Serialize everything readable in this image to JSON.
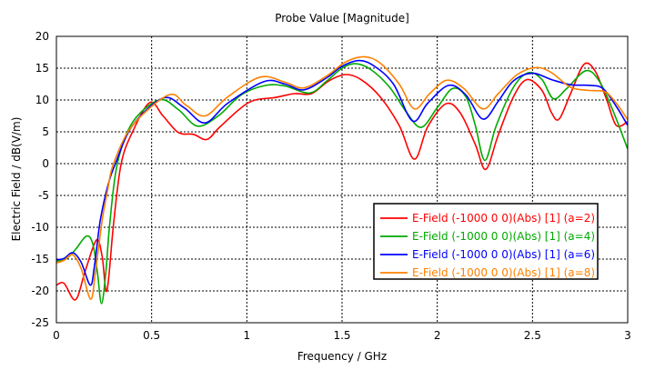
{
  "chart_data": {
    "type": "line",
    "title": "Probe Value [Magnitude]",
    "xlabel": "Frequency / GHz",
    "ylabel": "Electric Field / dB(V/m)",
    "xlim": [
      0,
      3
    ],
    "ylim": [
      -25,
      20
    ],
    "xticks": [
      0,
      0.5,
      1,
      1.5,
      2,
      2.5,
      3
    ],
    "xtick_labels": [
      "0",
      "0.5",
      "1",
      "1.5",
      "2",
      "2.5",
      "3"
    ],
    "yticks": [
      -25,
      -20,
      -15,
      -10,
      -5,
      0,
      5,
      10,
      15,
      20
    ],
    "ytick_labels": [
      "-25",
      "-20",
      "-15",
      "-10",
      "-5",
      "0",
      "5",
      "10",
      "15",
      "20"
    ],
    "grid": true,
    "legend_position": "lower-right",
    "series": [
      {
        "name": "E-Field (-1000 0 0)(Abs) [1] (a=2)",
        "color": "#ff0000",
        "x": [
          0,
          0.04,
          0.1,
          0.15,
          0.21,
          0.24,
          0.265,
          0.3,
          0.34,
          0.4,
          0.49,
          0.56,
          0.64,
          0.72,
          0.79,
          0.86,
          1.01,
          1.15,
          1.25,
          1.34,
          1.43,
          1.52,
          1.6,
          1.7,
          1.8,
          1.88,
          1.95,
          2.045,
          2.12,
          2.2,
          2.255,
          2.32,
          2.4,
          2.47,
          2.55,
          2.6,
          2.64,
          2.7,
          2.77,
          2.83,
          2.89,
          2.94,
          3.0
        ],
        "y": [
          -19.1,
          -18.8,
          -21.4,
          -17,
          -12,
          -14.5,
          -20,
          -9.5,
          0,
          5,
          9.6,
          7.5,
          4.9,
          4.6,
          3.8,
          5.8,
          9.6,
          10.4,
          11,
          11,
          13,
          14,
          13.2,
          10.5,
          6,
          0.7,
          5.8,
          9.4,
          8,
          3,
          -0.9,
          4.5,
          10.5,
          13.2,
          11.5,
          8,
          7,
          11,
          15.6,
          14.5,
          10,
          6,
          6.6
        ]
      },
      {
        "name": "E-Field (-1000 0 0)(Abs) [1] (a=4)",
        "color": "#00aa00",
        "x": [
          0,
          0.05,
          0.1,
          0.157,
          0.19,
          0.215,
          0.237,
          0.26,
          0.28,
          0.32,
          0.4,
          0.54,
          0.64,
          0.74,
          0.85,
          0.97,
          1.1,
          1.2,
          1.33,
          1.42,
          1.5,
          1.57,
          1.65,
          1.75,
          1.84,
          1.916,
          2.0,
          2.08,
          2.15,
          2.2,
          2.25,
          2.31,
          2.4,
          2.48,
          2.55,
          2.61,
          2.68,
          2.78,
          2.85,
          2.92,
          3.0
        ],
        "y": [
          -15.3,
          -15,
          -13.5,
          -11.4,
          -12.5,
          -17,
          -22,
          -17,
          -9.5,
          0,
          6.5,
          10,
          8.5,
          5.9,
          7.5,
          10.8,
          12.3,
          12.2,
          11.1,
          13,
          15,
          15.7,
          14.8,
          12,
          8,
          5.7,
          8.8,
          11.8,
          10.5,
          6,
          0.5,
          6,
          12,
          14.3,
          13.2,
          10.2,
          11.8,
          14.6,
          13,
          8.5,
          2.3
        ]
      },
      {
        "name": "E-Field (-1000 0 0)(Abs) [1] (a=6)",
        "color": "#0000ff",
        "x": [
          0,
          0.04,
          0.086,
          0.13,
          0.178,
          0.2,
          0.23,
          0.27,
          0.31,
          0.4,
          0.56,
          0.67,
          0.78,
          0.9,
          1.09,
          1.2,
          1.3,
          1.42,
          1.5,
          1.59,
          1.67,
          1.77,
          1.87,
          1.95,
          2.06,
          2.15,
          2.24,
          2.32,
          2.4,
          2.5,
          2.6,
          2.7,
          2.8,
          2.87,
          2.94,
          3.0
        ],
        "y": [
          -15.1,
          -14.9,
          -14,
          -15.5,
          -19.1,
          -16,
          -9,
          -3.5,
          0,
          6,
          10.3,
          8.8,
          6.4,
          9.5,
          12.9,
          12.5,
          11.6,
          13.5,
          15.3,
          16.2,
          15.3,
          12.5,
          6.7,
          9.5,
          12.3,
          10.8,
          7,
          9.8,
          13,
          14.2,
          13.2,
          12.4,
          12.3,
          11.8,
          9,
          6
        ]
      },
      {
        "name": "E-Field (-1000 0 0)(Abs) [1] (a=8)",
        "color": "#ff8000",
        "x": [
          0,
          0.04,
          0.085,
          0.13,
          0.18,
          0.205,
          0.24,
          0.27,
          0.3,
          0.4,
          0.59,
          0.68,
          0.78,
          0.9,
          1.07,
          1.2,
          1.3,
          1.42,
          1.52,
          1.615,
          1.7,
          1.8,
          1.88,
          1.96,
          2.05,
          2.14,
          2.24,
          2.32,
          2.42,
          2.52,
          2.6,
          2.7,
          2.8,
          2.88,
          2.94,
          3.0
        ],
        "y": [
          -15.6,
          -15.2,
          -14.3,
          -16.5,
          -21.3,
          -17,
          -9,
          -4,
          0,
          6,
          10.8,
          9.2,
          7.5,
          10.5,
          13.6,
          12.8,
          11.9,
          13.8,
          16,
          16.8,
          15.8,
          12.5,
          8.6,
          11,
          13.1,
          11.8,
          8.6,
          11,
          14,
          15.1,
          14.3,
          12,
          11.5,
          11.3,
          9.5,
          6.9
        ]
      }
    ]
  }
}
